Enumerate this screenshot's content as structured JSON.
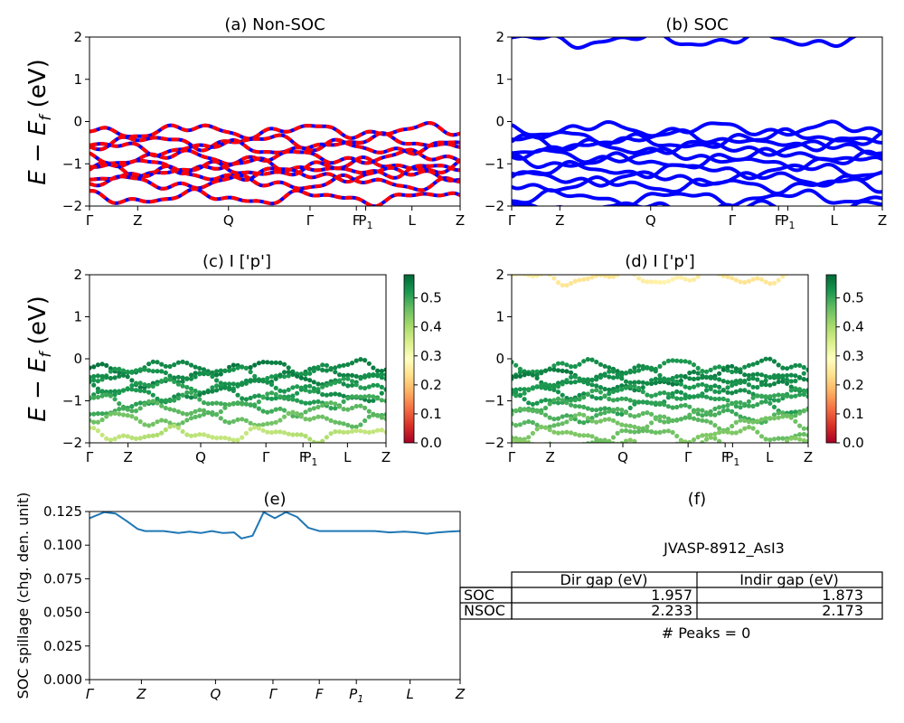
{
  "figure": {
    "ylabel_energy": "E − E",
    "ylabel_energy_sub": "f",
    "ylabel_energy_unit": " (eV)"
  },
  "chart_data": [
    {
      "id": "a",
      "type": "line",
      "title": "(a) Non-SOC",
      "ylim": [
        -2,
        2
      ],
      "yticks": [
        -2,
        -1,
        0,
        1,
        2
      ],
      "kpath": [
        {
          "label": "Γ",
          "x": 0.0
        },
        {
          "label": "Z",
          "x": 0.13
        },
        {
          "label": "Q",
          "x": 0.375
        },
        {
          "label": "Γ",
          "x": 0.595
        },
        {
          "label": "F",
          "x": 0.72
        },
        {
          "label": "P",
          "sub": "1",
          "x": 0.745
        },
        {
          "label": "L",
          "x": 0.87
        },
        {
          "label": "Z",
          "x": 1.0
        }
      ],
      "bands_spin_up_color": "#0000ff",
      "bands_spin_down_color": "#ff0000",
      "bands": [
        -0.22,
        -0.48,
        -0.62,
        -0.85,
        -1.05,
        -1.15,
        -1.25,
        -1.45,
        -1.8
      ]
    },
    {
      "id": "b",
      "type": "line",
      "title": "(b) SOC",
      "ylim": [
        -2,
        2
      ],
      "yticks": [
        -2,
        -1,
        0,
        1,
        2
      ],
      "kpath": [
        {
          "label": "Γ",
          "x": 0.0
        },
        {
          "label": "Z",
          "x": 0.13
        },
        {
          "label": "Q",
          "x": 0.375
        },
        {
          "label": "Γ",
          "x": 0.595
        },
        {
          "label": "F",
          "x": 0.72
        },
        {
          "label": "P",
          "sub": "1",
          "x": 0.745
        },
        {
          "label": "L",
          "x": 0.87
        },
        {
          "label": "Z",
          "x": 1.0
        }
      ],
      "band_color": "#0000ff",
      "bands": [
        1.93,
        -0.18,
        -0.38,
        -0.5,
        -0.62,
        -0.82,
        -0.95,
        -1.15,
        -1.35,
        -1.5,
        -1.8,
        -2.05
      ]
    },
    {
      "id": "c",
      "type": "scatter",
      "title": "(c)  I ['p']",
      "ylim": [
        -2,
        2
      ],
      "yticks": [
        -2,
        -1,
        0,
        1,
        2
      ],
      "kpath": [
        {
          "label": "Γ",
          "x": 0.0
        },
        {
          "label": "Z",
          "x": 0.13
        },
        {
          "label": "Q",
          "x": 0.375
        },
        {
          "label": "Γ",
          "x": 0.595
        },
        {
          "label": "F",
          "x": 0.72
        },
        {
          "label": "P",
          "sub": "1",
          "x": 0.745
        },
        {
          "label": "L",
          "x": 0.87
        },
        {
          "label": "Z",
          "x": 1.0
        }
      ],
      "colorbar": {
        "cmap": "RdYlGn",
        "range": [
          0.0,
          0.58
        ],
        "ticks": [
          0.0,
          0.1,
          0.2,
          0.3,
          0.4,
          0.5
        ]
      },
      "bands": [
        {
          "e": -0.2,
          "w": 0.57
        },
        {
          "e": -0.35,
          "w": 0.55
        },
        {
          "e": -0.5,
          "w": 0.56
        },
        {
          "e": -0.65,
          "w": 0.54
        },
        {
          "e": -0.85,
          "w": 0.55
        },
        {
          "e": -1.0,
          "w": 0.52
        },
        {
          "e": -1.2,
          "w": 0.5
        },
        {
          "e": -1.45,
          "w": 0.48
        },
        {
          "e": -1.8,
          "w": 0.4
        }
      ]
    },
    {
      "id": "d",
      "type": "scatter",
      "title": "(d) I ['p']",
      "ylim": [
        -2,
        2
      ],
      "yticks": [
        -2,
        -1,
        0,
        1,
        2
      ],
      "kpath": [
        {
          "label": "Γ",
          "x": 0.0
        },
        {
          "label": "Z",
          "x": 0.13
        },
        {
          "label": "Q",
          "x": 0.375
        },
        {
          "label": "Γ",
          "x": 0.595
        },
        {
          "label": "F",
          "x": 0.72
        },
        {
          "label": "P",
          "sub": "1",
          "x": 0.745
        },
        {
          "label": "L",
          "x": 0.87
        },
        {
          "label": "Z",
          "x": 1.0
        }
      ],
      "colorbar": {
        "cmap": "RdYlGn",
        "range": [
          0.0,
          0.58
        ],
        "ticks": [
          0.0,
          0.1,
          0.2,
          0.3,
          0.4,
          0.5
        ]
      },
      "bands": [
        {
          "e": 1.93,
          "w": 0.27
        },
        {
          "e": -0.18,
          "w": 0.55
        },
        {
          "e": -0.38,
          "w": 0.56
        },
        {
          "e": -0.5,
          "w": 0.56
        },
        {
          "e": -0.62,
          "w": 0.55
        },
        {
          "e": -0.82,
          "w": 0.54
        },
        {
          "e": -0.95,
          "w": 0.53
        },
        {
          "e": -1.15,
          "w": 0.52
        },
        {
          "e": -1.35,
          "w": 0.5
        },
        {
          "e": -1.5,
          "w": 0.48
        },
        {
          "e": -1.8,
          "w": 0.47
        },
        {
          "e": -2.05,
          "w": 0.46
        }
      ]
    },
    {
      "id": "e",
      "type": "line",
      "title": "(e)",
      "ylabel": "SOC spillage (chg. den. unit)",
      "ylim": [
        0,
        0.125
      ],
      "yticks": [
        0.0,
        0.025,
        0.05,
        0.075,
        0.1,
        0.125
      ],
      "ytick_labels": [
        "0.000",
        "0.025",
        "0.050",
        "0.075",
        "0.100",
        "0.125"
      ],
      "kpath": [
        {
          "label": "Γ",
          "x": 0.0
        },
        {
          "label": "Z",
          "x": 0.14
        },
        {
          "label": "Q",
          "x": 0.34
        },
        {
          "label": "Γ",
          "x": 0.495
        },
        {
          "label": "F",
          "x": 0.62
        },
        {
          "label": "P",
          "sub": "1",
          "x": 0.72
        },
        {
          "label": "L",
          "x": 0.865
        },
        {
          "label": "Z",
          "x": 1.0
        }
      ],
      "line_color": "#1f77b4",
      "x": [
        0.0,
        0.04,
        0.07,
        0.1,
        0.13,
        0.15,
        0.2,
        0.24,
        0.27,
        0.3,
        0.33,
        0.36,
        0.39,
        0.41,
        0.44,
        0.47,
        0.5,
        0.53,
        0.56,
        0.59,
        0.62,
        0.67,
        0.72,
        0.77,
        0.81,
        0.85,
        0.88,
        0.91,
        0.94,
        0.97,
        1.0
      ],
      "y": [
        0.12,
        0.1245,
        0.1235,
        0.118,
        0.112,
        0.1105,
        0.1105,
        0.109,
        0.11,
        0.109,
        0.1105,
        0.109,
        0.1095,
        0.105,
        0.107,
        0.1245,
        0.12,
        0.1245,
        0.121,
        0.113,
        0.1105,
        0.1105,
        0.1105,
        0.1105,
        0.1095,
        0.11,
        0.1095,
        0.1085,
        0.1095,
        0.11,
        0.1105
      ]
    }
  ],
  "panel_f": {
    "title": "(f)",
    "subtitle": "JVASP-8912_AsI3",
    "columns": [
      "Dir gap (eV)",
      "Indir gap (eV)"
    ],
    "rows": [
      {
        "label": "SOC",
        "dir": "1.957",
        "indir": "1.873"
      },
      {
        "label": "NSOC",
        "dir": "2.233",
        "indir": "2.173"
      }
    ],
    "peaks": "# Peaks = 0"
  }
}
